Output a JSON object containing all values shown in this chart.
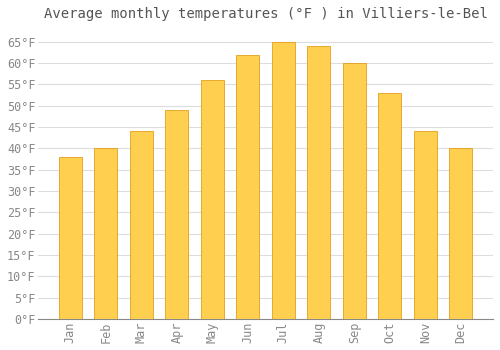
{
  "title": "Average monthly temperatures (°F ) in Villiers-le-Bel",
  "months": [
    "Jan",
    "Feb",
    "Mar",
    "Apr",
    "May",
    "Jun",
    "Jul",
    "Aug",
    "Sep",
    "Oct",
    "Nov",
    "Dec"
  ],
  "values": [
    38,
    40,
    44,
    49,
    56,
    62,
    65,
    64,
    60,
    53,
    44,
    40
  ],
  "bar_color": "#FFA500",
  "bar_color_light": "#FFD050",
  "bar_edge_color": "#E09000",
  "background_color": "#FFFFFF",
  "grid_color": "#DDDDDD",
  "text_color": "#888888",
  "title_color": "#555555",
  "ylim": [
    0,
    68
  ],
  "yticks": [
    0,
    5,
    10,
    15,
    20,
    25,
    30,
    35,
    40,
    45,
    50,
    55,
    60,
    65
  ],
  "title_fontsize": 10,
  "tick_fontsize": 8.5
}
